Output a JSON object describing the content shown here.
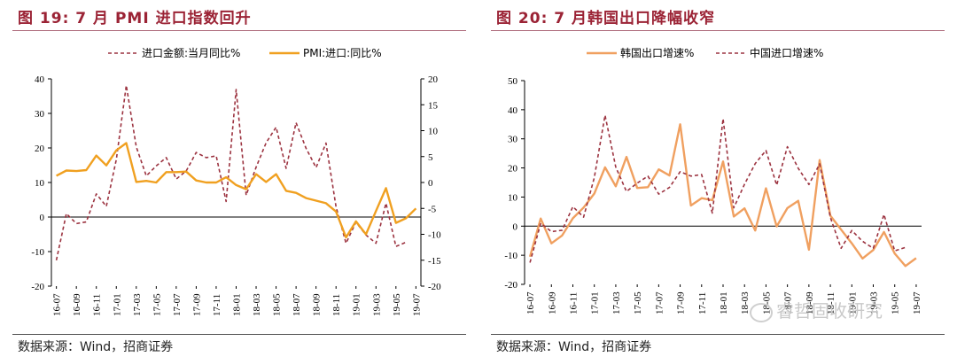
{
  "left": {
    "title": "图 19: 7 月 PMI 进口指数回升",
    "source": "数据来源：Wind，招商证券",
    "chart_data": {
      "type": "line",
      "categories": [
        "16-07",
        "16-08",
        "16-09",
        "16-10",
        "16-11",
        "16-12",
        "17-01",
        "17-02",
        "17-03",
        "17-04",
        "17-05",
        "17-06",
        "17-07",
        "17-08",
        "17-09",
        "17-10",
        "17-11",
        "17-12",
        "18-01",
        "18-02",
        "18-03",
        "18-04",
        "18-05",
        "18-06",
        "18-07",
        "18-08",
        "18-09",
        "18-10",
        "18-11",
        "18-12",
        "19-01",
        "19-02",
        "19-03",
        "19-04",
        "19-05",
        "19-06",
        "19-07"
      ],
      "x_tick_labels": [
        "16-07",
        "16-09",
        "16-11",
        "17-01",
        "17-03",
        "17-05",
        "17-07",
        "17-09",
        "17-11",
        "18-01",
        "18-03",
        "18-05",
        "18-07",
        "18-09",
        "18-11",
        "19-01",
        "19-03",
        "19-05",
        "19-07"
      ],
      "y_left": {
        "min": -20,
        "max": 40,
        "ticks": [
          -20,
          -10,
          0,
          10,
          20,
          30,
          40
        ]
      },
      "y_right": {
        "min": -20,
        "max": 20,
        "ticks": [
          -20,
          -15,
          -10,
          -5,
          0,
          5,
          10,
          15,
          20
        ]
      },
      "series": [
        {
          "name": "进口金额:当月同比%",
          "axis": "left",
          "style": "dashed",
          "color": "#9c3340",
          "values": [
            -12.5,
            1.0,
            -1.9,
            -1.4,
            6.7,
            3.1,
            16.7,
            38.1,
            20.3,
            11.9,
            14.8,
            17.2,
            11.0,
            13.3,
            18.7,
            17.2,
            17.7,
            4.5,
            36.9,
            6.3,
            14.4,
            21.5,
            26.0,
            14.1,
            27.3,
            19.9,
            14.3,
            21.4,
            3.0,
            -7.6,
            -1.5,
            -5.2,
            -7.6,
            4.0,
            -8.5,
            -7.3,
            null
          ]
        },
        {
          "name": "PMI:进口:同比%",
          "axis": "right",
          "style": "solid",
          "color": "#f0a020",
          "values": [
            1.3,
            2.3,
            2.2,
            2.4,
            5.2,
            3.3,
            6.2,
            7.6,
            0.1,
            0.3,
            0.0,
            2.0,
            2.0,
            2.1,
            0.4,
            0.0,
            0.0,
            1.0,
            -0.5,
            -1.3,
            1.6,
            0.1,
            1.6,
            -1.6,
            -2.0,
            -3.0,
            -3.5,
            -4.0,
            -5.6,
            -10.6,
            -7.5,
            -10.0,
            -5.5,
            -1.1,
            -7.8,
            -6.9,
            -5.0
          ]
        }
      ]
    }
  },
  "right": {
    "title": "图 20: 7 月韩国出口降幅收窄",
    "source": "数据来源：Wind，招商证券",
    "watermark": "睿哲固收研究",
    "chart_data": {
      "type": "line",
      "categories": [
        "16-07",
        "16-08",
        "16-09",
        "16-10",
        "16-11",
        "16-12",
        "17-01",
        "17-02",
        "17-03",
        "17-04",
        "17-05",
        "17-06",
        "17-07",
        "17-08",
        "17-09",
        "17-10",
        "17-11",
        "17-12",
        "18-01",
        "18-02",
        "18-03",
        "18-04",
        "18-05",
        "18-06",
        "18-07",
        "18-08",
        "18-09",
        "18-10",
        "18-11",
        "18-12",
        "19-01",
        "19-02",
        "19-03",
        "19-04",
        "19-05",
        "19-06",
        "19-07"
      ],
      "x_tick_labels": [
        "16-07",
        "16-09",
        "16-11",
        "17-01",
        "17-03",
        "17-05",
        "17-07",
        "17-09",
        "17-11",
        "18-01",
        "18-03",
        "18-05",
        "18-07",
        "18-09",
        "18-11",
        "19-01",
        "19-03",
        "19-05",
        "19-07"
      ],
      "y_left": {
        "min": -20,
        "max": 50,
        "ticks": [
          -20,
          -10,
          0,
          10,
          20,
          30,
          40,
          50
        ]
      },
      "series": [
        {
          "name": "韩国出口增速%",
          "style": "solid",
          "color": "#f0a060",
          "values": [
            -10.5,
            2.6,
            -5.9,
            -3.2,
            2.7,
            6.4,
            11.2,
            20.2,
            13.7,
            23.8,
            13.1,
            13.4,
            19.5,
            17.4,
            35.0,
            7.1,
            9.6,
            8.9,
            22.2,
            3.3,
            6.1,
            -1.5,
            13.0,
            -0.1,
            6.2,
            8.7,
            -8.1,
            22.7,
            3.6,
            -1.2,
            -5.9,
            -11.1,
            -8.2,
            -2.0,
            -9.4,
            -13.7,
            -11.0
          ]
        },
        {
          "name": "中国进口增速%",
          "style": "dashed",
          "color": "#9c3340",
          "values": [
            -12.5,
            1.0,
            -1.9,
            -1.4,
            6.7,
            3.1,
            16.7,
            38.1,
            20.3,
            11.9,
            14.8,
            17.2,
            11.0,
            13.3,
            18.7,
            17.2,
            17.7,
            4.5,
            36.9,
            6.3,
            14.4,
            21.5,
            26.0,
            14.1,
            27.3,
            19.9,
            14.3,
            21.4,
            3.0,
            -7.6,
            -1.5,
            -5.2,
            -7.6,
            4.0,
            -8.5,
            -7.3,
            null
          ]
        }
      ]
    }
  }
}
